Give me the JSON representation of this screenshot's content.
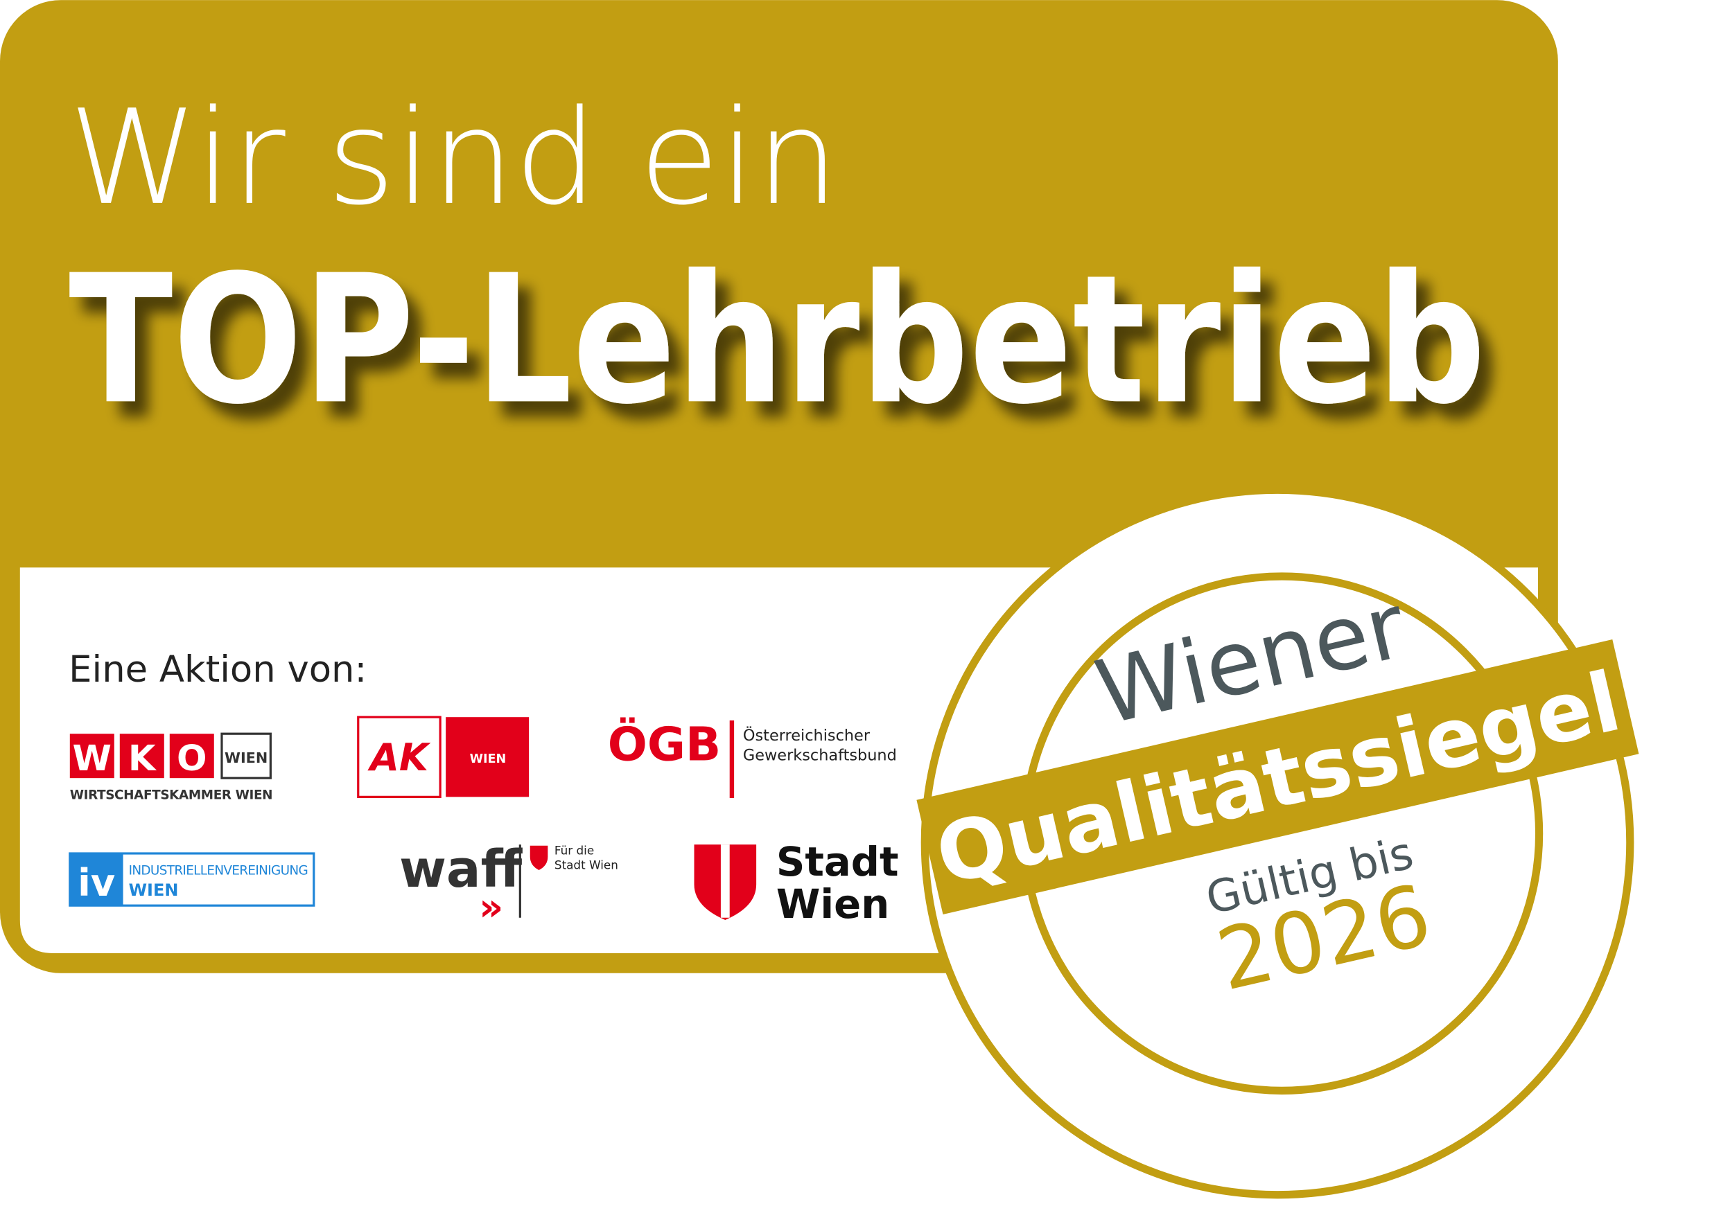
{
  "badge": {
    "headline_line1": "Wir sind ein",
    "headline_line2": "TOP-Lehrbetrieb",
    "intro": "Eine Aktion von:"
  },
  "logos": {
    "wko": {
      "letters": [
        "W",
        "K",
        "O"
      ],
      "region": "WIEN",
      "name": "WIRTSCHAFTSKAMMER WIEN"
    },
    "ak": {
      "mark": "AK",
      "region": "WIEN"
    },
    "oegb": {
      "mark": "ÖGB",
      "line1": "Österreichischer",
      "line2": "Gewerkschaftsbund"
    },
    "iv": {
      "mark": "iv",
      "line1": "INDUSTRIELLENVEREINIGUNG",
      "line2": "WIEN"
    },
    "waff": {
      "mark": "waff",
      "arrows": "»",
      "line1": "Für die",
      "line2": "Stadt Wien"
    },
    "stadt_wien": {
      "line1": "Stadt",
      "line2": "Wien"
    }
  },
  "seal": {
    "top": "Wiener",
    "band": "Qualitätssiegel",
    "validity": "Gültig bis",
    "year": "2026"
  }
}
